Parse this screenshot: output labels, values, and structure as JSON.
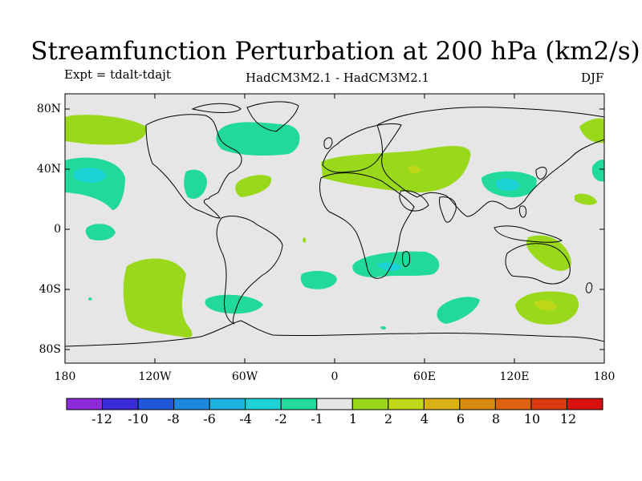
{
  "header": {
    "title": "Streamfunction Perturbation at 200 hPa (km2/s)",
    "experiment": "Expt = tdalt-tdajt",
    "models": "HadCM3M2.1 - HadCM3M2.1",
    "season": "DJF"
  },
  "map": {
    "background_color": "#e6e6e6",
    "lat_labels": [
      "80N",
      "40N",
      "0",
      "40S",
      "80S"
    ],
    "lon_labels": [
      "180",
      "120W",
      "60W",
      "0",
      "60E",
      "120E",
      "180"
    ]
  },
  "colorbar": {
    "colors": [
      "#8c2bd9",
      "#3a2bd8",
      "#1f58d6",
      "#1e88df",
      "#1db2e0",
      "#1ad2d4",
      "#20d99b",
      "#e6e6e6",
      "#9ad81c",
      "#c0d717",
      "#d8b214",
      "#d98a12",
      "#da6210",
      "#da3a10",
      "#da1010"
    ],
    "labels": [
      "-12",
      "-10",
      "-8",
      "-6",
      "-4",
      "-2",
      "-1",
      "1",
      "2",
      "4",
      "6",
      "8",
      "10",
      "12"
    ]
  }
}
